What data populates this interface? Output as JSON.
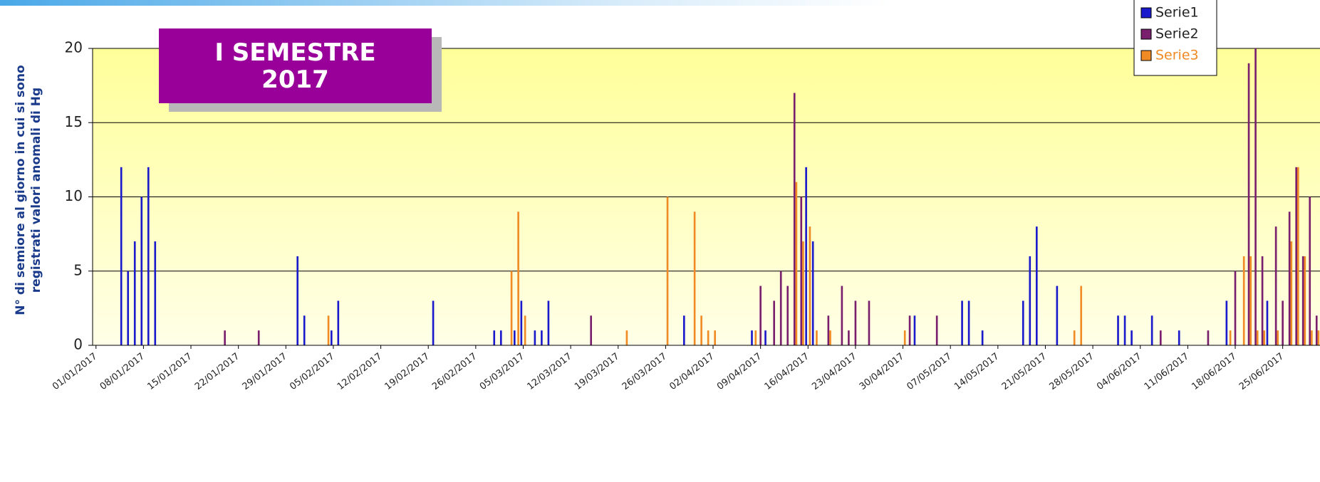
{
  "chart_data": {
    "type": "bar",
    "title": "I SEMESTRE 2017",
    "y_label": "N° di semiore al giorno in cui si sono registrati valori anomali di Hg",
    "ylim": [
      0,
      20
    ],
    "yticks": [
      0,
      5,
      10,
      15,
      20
    ],
    "grid": true,
    "legend": "top-right",
    "categories": [
      "01/01/2017",
      null,
      null,
      null,
      null,
      null,
      null,
      "08/01/2017",
      null,
      null,
      null,
      null,
      null,
      null,
      "15/01/2017",
      null,
      null,
      null,
      null,
      null,
      null,
      "22/01/2017",
      null,
      null,
      null,
      null,
      null,
      null,
      "29/01/2017",
      null,
      null,
      null,
      null,
      null,
      null,
      "05/02/2017",
      null,
      null,
      null,
      null,
      null,
      null,
      "12/02/2017",
      null,
      null,
      null,
      null,
      null,
      null,
      "19/02/2017",
      null,
      null,
      null,
      null,
      null,
      null,
      "26/02/2017",
      null,
      null,
      null,
      null,
      null,
      null,
      "05/03/2017",
      null,
      null,
      null,
      null,
      null,
      null,
      "12/03/2017",
      null,
      null,
      null,
      null,
      null,
      null,
      "19/03/2017",
      null,
      null,
      null,
      null,
      null,
      null,
      "26/03/2017",
      null,
      null,
      null,
      null,
      null,
      null,
      "02/04/2017",
      null,
      null,
      null,
      null,
      null,
      null,
      "09/04/2017",
      null,
      null,
      null,
      null,
      null,
      null,
      "16/04/2017",
      null,
      null,
      null,
      null,
      null,
      null,
      "23/04/2017",
      null,
      null,
      null,
      null,
      null,
      null,
      "30/04/2017",
      null,
      null,
      null,
      null,
      null,
      null,
      "07/05/2017",
      null,
      null,
      null,
      null,
      null,
      null,
      "14/05/2017",
      null,
      null,
      null,
      null,
      null,
      null,
      "21/05/2017",
      null,
      null,
      null,
      null,
      null,
      null,
      "28/05/2017",
      null,
      null,
      null,
      null,
      null,
      null,
      "04/06/2017",
      null,
      null,
      null,
      null,
      null,
      null,
      "11/06/2017",
      null,
      null,
      null,
      null,
      null,
      null,
      "18/06/2017",
      null,
      null,
      null,
      null,
      null,
      null,
      "25/06/2017",
      null,
      null,
      null,
      null,
      null
    ],
    "series": [
      {
        "name": "Serie1",
        "color": "#1a1acc",
        "values": [
          0,
          0,
          0,
          0,
          12,
          5,
          7,
          10,
          12,
          7,
          0,
          0,
          0,
          0,
          0,
          0,
          0,
          0,
          0,
          0,
          0,
          0,
          0,
          0,
          0,
          0,
          0,
          0,
          0,
          0,
          6,
          2,
          0,
          0,
          0,
          1,
          3,
          0,
          0,
          0,
          0,
          0,
          0,
          0,
          0,
          0,
          0,
          0,
          0,
          0,
          3,
          0,
          0,
          0,
          0,
          0,
          0,
          0,
          0,
          1,
          1,
          0,
          1,
          3,
          0,
          1,
          1,
          3,
          0,
          0,
          0,
          0,
          0,
          0,
          0,
          0,
          0,
          0,
          0,
          0,
          0,
          0,
          0,
          0,
          0,
          0,
          0,
          2,
          0,
          0,
          0,
          0,
          0,
          0,
          0,
          0,
          0,
          1,
          0,
          1,
          0,
          0,
          0,
          0,
          0,
          12,
          7,
          0,
          0,
          0,
          0,
          0,
          0,
          0,
          0,
          0,
          0,
          0,
          0,
          0,
          0,
          2,
          0,
          0,
          0,
          0,
          0,
          0,
          3,
          3,
          0,
          1,
          0,
          0,
          0,
          0,
          0,
          3,
          6,
          8,
          0,
          0,
          4,
          0,
          0,
          0,
          0,
          0,
          0,
          0,
          0,
          2,
          2,
          1,
          0,
          0,
          2,
          0,
          0,
          0,
          1,
          0,
          0,
          0,
          0,
          0,
          0,
          3,
          0,
          0,
          0,
          0,
          0,
          3,
          0,
          0,
          0,
          0,
          0,
          0,
          0
        ]
      },
      {
        "name": "Serie2",
        "color": "#7a1f6e",
        "values": [
          0,
          0,
          0,
          0,
          0,
          0,
          0,
          0,
          0,
          0,
          0,
          0,
          0,
          0,
          0,
          0,
          0,
          0,
          0,
          1,
          0,
          0,
          0,
          0,
          1,
          0,
          0,
          0,
          0,
          0,
          0,
          0,
          0,
          0,
          0,
          0,
          0,
          0,
          0,
          0,
          0,
          0,
          0,
          0,
          0,
          0,
          0,
          0,
          0,
          0,
          0,
          0,
          0,
          0,
          0,
          0,
          0,
          0,
          0,
          0,
          0,
          0,
          0,
          0,
          0,
          0,
          0,
          0,
          0,
          0,
          0,
          0,
          0,
          2,
          0,
          0,
          0,
          0,
          0,
          0,
          0,
          0,
          0,
          0,
          0,
          0,
          0,
          0,
          0,
          0,
          0,
          0,
          0,
          0,
          0,
          0,
          0,
          0,
          4,
          0,
          3,
          5,
          4,
          17,
          10,
          0,
          0,
          0,
          2,
          0,
          4,
          1,
          3,
          0,
          3,
          0,
          0,
          0,
          0,
          0,
          2,
          0,
          0,
          0,
          2,
          0,
          0,
          0,
          0,
          0,
          0,
          0,
          0,
          0,
          0,
          0,
          0,
          0,
          0,
          0,
          0,
          0,
          0,
          0,
          0,
          0,
          0,
          0,
          0,
          0,
          0,
          0,
          0,
          0,
          0,
          0,
          0,
          1,
          0,
          0,
          0,
          0,
          0,
          0,
          1,
          0,
          0,
          0,
          5,
          0,
          19,
          20,
          6,
          0,
          8,
          3,
          9,
          12,
          6,
          10,
          2
        ]
      },
      {
        "name": "Serie3",
        "color": "#f08a24",
        "values": [
          0,
          0,
          0,
          0,
          0,
          0,
          0,
          0,
          0,
          0,
          0,
          0,
          0,
          0,
          0,
          0,
          0,
          0,
          0,
          0,
          0,
          0,
          0,
          0,
          0,
          0,
          0,
          0,
          0,
          0,
          0,
          0,
          0,
          0,
          2,
          0,
          0,
          0,
          0,
          0,
          0,
          0,
          0,
          0,
          0,
          0,
          0,
          0,
          0,
          0,
          0,
          0,
          0,
          0,
          0,
          0,
          0,
          0,
          0,
          0,
          0,
          5,
          9,
          2,
          0,
          0,
          0,
          0,
          0,
          0,
          0,
          0,
          0,
          0,
          0,
          0,
          0,
          0,
          1,
          0,
          0,
          0,
          0,
          0,
          10,
          0,
          0,
          0,
          9,
          2,
          1,
          1,
          0,
          0,
          0,
          0,
          0,
          1,
          0,
          0,
          0,
          0,
          0,
          11,
          7,
          8,
          1,
          0,
          1,
          0,
          0,
          0,
          0,
          0,
          0,
          0,
          0,
          0,
          0,
          1,
          0,
          0,
          0,
          0,
          0,
          0,
          0,
          0,
          0,
          0,
          0,
          0,
          0,
          0,
          0,
          0,
          0,
          0,
          0,
          0,
          0,
          0,
          0,
          0,
          1,
          4,
          0,
          0,
          0,
          0,
          0,
          0,
          0,
          0,
          0,
          0,
          0,
          0,
          0,
          0,
          0,
          0,
          0,
          0,
          0,
          0,
          0,
          1,
          0,
          6,
          6,
          1,
          1,
          0,
          1,
          0,
          7,
          12,
          6,
          1,
          1
        ]
      }
    ]
  }
}
